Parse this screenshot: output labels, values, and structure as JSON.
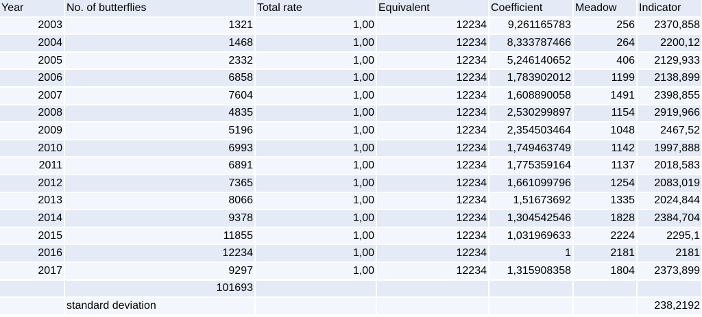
{
  "headers": [
    "Year",
    "No. of butterflies",
    "Total rate",
    "Equivalent",
    "Coefficient",
    "Meadow",
    "Indicator"
  ],
  "rows": [
    [
      "2003",
      "1321",
      "1,00",
      "12234",
      "9,261165783",
      "256",
      "2370,858"
    ],
    [
      "2004",
      "1468",
      "1,00",
      "12234",
      "8,333787466",
      "264",
      "2200,12"
    ],
    [
      "2005",
      "2332",
      "1,00",
      "12234",
      "5,246140652",
      "406",
      "2129,933"
    ],
    [
      "2006",
      "6858",
      "1,00",
      "12234",
      "1,783902012",
      "1199",
      "2138,899"
    ],
    [
      "2007",
      "7604",
      "1,00",
      "12234",
      "1,608890058",
      "1491",
      "2398,855"
    ],
    [
      "2008",
      "4835",
      "1,00",
      "12234",
      "2,530299897",
      "1154",
      "2919,966"
    ],
    [
      "2009",
      "5196",
      "1,00",
      "12234",
      "2,354503464",
      "1048",
      "2467,52"
    ],
    [
      "2010",
      "6993",
      "1,00",
      "12234",
      "1,749463749",
      "1142",
      "1997,888"
    ],
    [
      "2011",
      "6891",
      "1,00",
      "12234",
      "1,775359164",
      "1137",
      "2018,583"
    ],
    [
      "2012",
      "7365",
      "1,00",
      "12234",
      "1,661099796",
      "1254",
      "2083,019"
    ],
    [
      "2013",
      "8066",
      "1,00",
      "12234",
      "1,51673692",
      "1335",
      "2024,844"
    ],
    [
      "2014",
      "9378",
      "1,00",
      "12234",
      "1,304542546",
      "1828",
      "2384,704"
    ],
    [
      "2015",
      "11855",
      "1,00",
      "12234",
      "1,031969633",
      "2224",
      "2295,1"
    ],
    [
      "2016",
      "12234",
      "1,00",
      "12234",
      "1",
      "2181",
      "2181"
    ],
    [
      "2017",
      "9297",
      "1,00",
      "12234",
      "1,315908358",
      "1804",
      "2373,899"
    ]
  ],
  "total": "101693",
  "stddev_label": "standard deviation",
  "stddev_value": "238,2192",
  "colors": {
    "row_dark": "#e4eaf6",
    "row_light": "#f3f6fc",
    "grid": "#ffffff"
  }
}
